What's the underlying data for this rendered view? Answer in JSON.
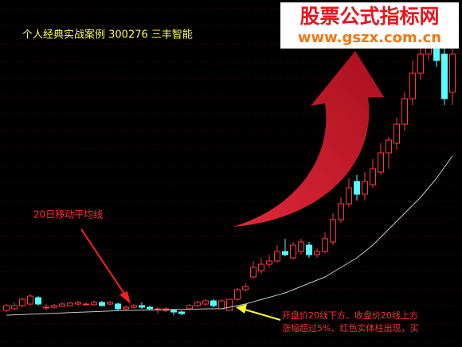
{
  "chart_data": {
    "type": "candlestick",
    "title": "个人经典实战案例 300276 三丰智能",
    "watermark": {
      "name": "股票公式指标网",
      "url": "www.gszx.com.cn"
    },
    "annotations": {
      "ma_label": "20日移动平均线",
      "signal_line1": "开盘价20线下方、收盘价20线上方",
      "signal_line2": "涨幅超过5%、红色实体柱出现，买"
    },
    "ylim": [
      0,
      109
    ],
    "up_color": "#ff3a3a",
    "down_color": "#54ffff",
    "ma_color": "#c8c8c8",
    "open": [
      11.5,
      12,
      13,
      13.5,
      15.5,
      12.5,
      12.5,
      12.8,
      13,
      13.5,
      13.5,
      13.3,
      14,
      13.5,
      13.5,
      12,
      12.5,
      13,
      12.5,
      12,
      11.5,
      11.5,
      11,
      12,
      13,
      13.5,
      14.5,
      12,
      11.5,
      15,
      18,
      22,
      24,
      26,
      27,
      30,
      28,
      30,
      32,
      29,
      30,
      33,
      40,
      45,
      52,
      48,
      51,
      55,
      61,
      64,
      70,
      78,
      86,
      92,
      96,
      92,
      80
    ],
    "close": [
      13,
      13,
      15,
      16,
      13.5,
      12.5,
      13,
      13.5,
      13.8,
      14,
      13.5,
      14,
      13,
      14,
      12,
      12.5,
      13,
      12.5,
      12,
      12,
      12,
      11,
      10.5,
      13,
      14,
      14.5,
      13,
      14.5,
      15,
      18,
      19,
      25,
      26,
      27,
      30,
      29,
      32,
      33,
      29,
      30,
      34,
      40,
      45,
      50,
      48,
      52,
      56,
      61,
      65,
      70,
      78,
      86,
      92,
      98,
      90,
      78,
      92
    ],
    "high": [
      13.5,
      14,
      15.5,
      16.5,
      16,
      13.5,
      13.5,
      14,
      14.2,
      14.5,
      14,
      14.5,
      14.5,
      14.5,
      14,
      13,
      13.5,
      14,
      13,
      12.5,
      12.5,
      12,
      11.5,
      13.5,
      14.5,
      15,
      15,
      15,
      15,
      18.5,
      20,
      27,
      28,
      29,
      32,
      34,
      33,
      34,
      33,
      31,
      36,
      42,
      47,
      53,
      54,
      55,
      59,
      64,
      66,
      72,
      80,
      90,
      98,
      106,
      99,
      95,
      94
    ],
    "low": [
      11,
      11.5,
      12.5,
      13,
      13,
      11.5,
      12,
      12.5,
      12.8,
      13,
      13,
      13,
      12.8,
      13,
      11.5,
      11.5,
      12,
      12,
      11.5,
      10.5,
      11,
      10,
      10,
      11.5,
      12.5,
      13,
      12.5,
      12,
      11.5,
      14.5,
      17.5,
      21.5,
      23,
      25,
      26.5,
      28.5,
      27.5,
      29,
      28,
      28,
      29.5,
      32,
      39,
      44,
      46,
      46,
      50,
      54,
      56,
      62,
      68,
      76,
      84,
      90,
      88,
      76,
      76
    ],
    "ma20": [
      10,
      10.1,
      10.2,
      10.3,
      10.4,
      10.5,
      10.6,
      10.7,
      10.8,
      10.9,
      11,
      11.1,
      11.2,
      11.3,
      11.4,
      11.5,
      11.5,
      11.6,
      11.6,
      11.7,
      11.7,
      11.8,
      11.8,
      11.9,
      11.9,
      12,
      12,
      12,
      12.5,
      13,
      13.5,
      14.2,
      14.9,
      15.6,
      16.3,
      17,
      18,
      19,
      20,
      21,
      22,
      23.5,
      25,
      26.5,
      28,
      30,
      32,
      34.5,
      37,
      39.5,
      42,
      44.5,
      47,
      50,
      53,
      56.5,
      60
    ]
  }
}
